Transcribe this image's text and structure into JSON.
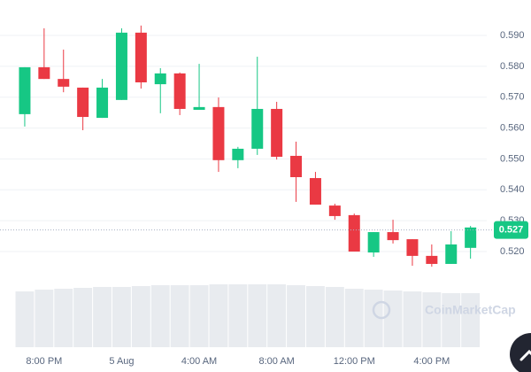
{
  "chart_data": {
    "type": "candlestick",
    "categories": [
      null,
      "8:00 PM",
      null,
      null,
      null,
      "5 Aug",
      null,
      null,
      null,
      "4:00 AM",
      null,
      null,
      null,
      "8:00 AM",
      null,
      null,
      null,
      "12:00 PM",
      null,
      null,
      null,
      "4:00 PM",
      null,
      null
    ],
    "open": [
      0.5645,
      0.5797,
      0.5759,
      0.5731,
      0.5633,
      0.5691,
      0.5909,
      0.5742,
      0.5777,
      0.5659,
      0.5668,
      0.5496,
      0.5533,
      0.5662,
      0.551,
      0.5438,
      0.5349,
      0.5318,
      0.5197,
      0.5263,
      0.524,
      0.5186,
      0.516,
      0.5212
    ],
    "high": [
      0.5797,
      0.5923,
      0.5854,
      0.5731,
      0.5759,
      0.5923,
      0.5932,
      0.5794,
      0.578,
      0.5808,
      0.5699,
      0.5539,
      0.5831,
      0.5685,
      0.5556,
      0.5458,
      0.5355,
      0.5323,
      0.5263,
      0.5303,
      0.524,
      0.5223,
      0.5266,
      0.5283
    ],
    "low": [
      0.5605,
      0.5759,
      0.5716,
      0.5593,
      0.5633,
      0.5691,
      0.5728,
      0.5648,
      0.5642,
      0.5659,
      0.5458,
      0.547,
      0.5513,
      0.5498,
      0.5361,
      0.5352,
      0.5303,
      0.52,
      0.5183,
      0.5226,
      0.5154,
      0.5151,
      0.516,
      0.5177
    ],
    "close": [
      0.5797,
      0.5759,
      0.5734,
      0.5636,
      0.5731,
      0.5909,
      0.5748,
      0.5777,
      0.5662,
      0.5668,
      0.5496,
      0.5533,
      0.5662,
      0.5507,
      0.5441,
      0.5352,
      0.5315,
      0.52,
      0.5263,
      0.5237,
      0.5186,
      0.516,
      0.5223,
      0.5278
    ],
    "volume": [
      63,
      65,
      66,
      67,
      68,
      68,
      69,
      70,
      70,
      70,
      71,
      71,
      71,
      71,
      70,
      69,
      68,
      66,
      65,
      64,
      63,
      62,
      61,
      61
    ],
    "up_color": "#16c784",
    "down_color": "#ea3943",
    "volume_color": "#e8ebef",
    "current_price": {
      "value": 0.527,
      "label": "0.527"
    },
    "watermark": "CoinMarketCap",
    "ylim": [
      0.49,
      0.6
    ],
    "yticks": [
      {
        "value": 0.52,
        "label": "0.520"
      },
      {
        "value": 0.53,
        "label": "0.530"
      },
      {
        "value": 0.54,
        "label": "0.540"
      },
      {
        "value": 0.55,
        "label": "0.550"
      },
      {
        "value": 0.56,
        "label": "0.560"
      },
      {
        "value": 0.57,
        "label": "0.570"
      },
      {
        "value": 0.58,
        "label": "0.580"
      },
      {
        "value": 0.59,
        "label": "0.590"
      }
    ],
    "grid": true
  }
}
